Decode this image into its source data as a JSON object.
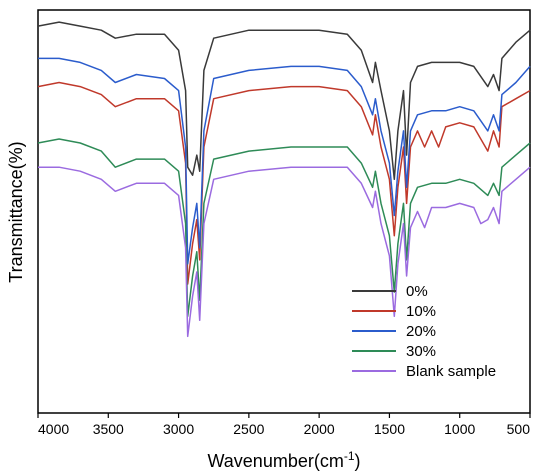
{
  "chart_data": {
    "type": "line",
    "title": "",
    "xlabel": "Wavenumber(cm",
    "xlabel_sup": "-1",
    "xlabel_end": ")",
    "ylabel": "Transmittance(%)",
    "xlim": [
      4000,
      500
    ],
    "x_reversed": true,
    "ylim": [
      0,
      100
    ],
    "y_ticks_shown": false,
    "x_ticks": [
      4000,
      3500,
      3000,
      2500,
      2000,
      1500,
      1000,
      500
    ],
    "x_tick_labels": [
      "4000",
      "3500",
      "3000",
      "2500",
      "2000",
      "1500",
      "1000",
      "500"
    ],
    "legend_position": "bottom-right",
    "grid": false,
    "series": [
      {
        "name": "0%",
        "color": "#3a3a3a",
        "points": [
          [
            4000,
            96
          ],
          [
            3850,
            97
          ],
          [
            3700,
            96
          ],
          [
            3550,
            95
          ],
          [
            3450,
            93
          ],
          [
            3300,
            94
          ],
          [
            3100,
            94
          ],
          [
            3000,
            90
          ],
          [
            2950,
            80
          ],
          [
            2935,
            61
          ],
          [
            2900,
            59
          ],
          [
            2870,
            64
          ],
          [
            2850,
            60
          ],
          [
            2820,
            85
          ],
          [
            2750,
            93
          ],
          [
            2500,
            95
          ],
          [
            2200,
            95
          ],
          [
            2000,
            95
          ],
          [
            1800,
            94
          ],
          [
            1700,
            90
          ],
          [
            1620,
            82
          ],
          [
            1600,
            87
          ],
          [
            1560,
            80
          ],
          [
            1500,
            70
          ],
          [
            1465,
            58
          ],
          [
            1440,
            70
          ],
          [
            1400,
            80
          ],
          [
            1378,
            64
          ],
          [
            1350,
            82
          ],
          [
            1300,
            86
          ],
          [
            1200,
            87
          ],
          [
            1100,
            87
          ],
          [
            1000,
            87
          ],
          [
            900,
            86
          ],
          [
            800,
            81
          ],
          [
            760,
            84
          ],
          [
            720,
            80
          ],
          [
            700,
            88
          ],
          [
            600,
            92
          ],
          [
            500,
            95
          ]
        ]
      },
      {
        "name": "10%",
        "color": "#c0392b",
        "points": [
          [
            4000,
            81
          ],
          [
            3850,
            82
          ],
          [
            3700,
            81
          ],
          [
            3550,
            79
          ],
          [
            3450,
            76
          ],
          [
            3300,
            78
          ],
          [
            3100,
            78
          ],
          [
            3000,
            75
          ],
          [
            2950,
            62
          ],
          [
            2935,
            32
          ],
          [
            2900,
            42
          ],
          [
            2870,
            48
          ],
          [
            2850,
            38
          ],
          [
            2820,
            66
          ],
          [
            2750,
            78
          ],
          [
            2500,
            80
          ],
          [
            2200,
            81
          ],
          [
            2000,
            81
          ],
          [
            1800,
            80
          ],
          [
            1700,
            76
          ],
          [
            1620,
            69
          ],
          [
            1600,
            74
          ],
          [
            1560,
            66
          ],
          [
            1500,
            58
          ],
          [
            1465,
            44
          ],
          [
            1440,
            56
          ],
          [
            1400,
            66
          ],
          [
            1378,
            52
          ],
          [
            1350,
            66
          ],
          [
            1300,
            70
          ],
          [
            1250,
            66
          ],
          [
            1200,
            70
          ],
          [
            1150,
            66
          ],
          [
            1100,
            71
          ],
          [
            1000,
            72
          ],
          [
            900,
            71
          ],
          [
            850,
            68
          ],
          [
            800,
            65
          ],
          [
            760,
            70
          ],
          [
            720,
            66
          ],
          [
            700,
            76
          ],
          [
            600,
            78
          ],
          [
            500,
            80
          ]
        ]
      },
      {
        "name": "20%",
        "color": "#2b5ccc",
        "points": [
          [
            4000,
            88
          ],
          [
            3850,
            88
          ],
          [
            3700,
            87
          ],
          [
            3550,
            85
          ],
          [
            3450,
            82
          ],
          [
            3300,
            84
          ],
          [
            3100,
            83
          ],
          [
            3000,
            80
          ],
          [
            2950,
            66
          ],
          [
            2935,
            37
          ],
          [
            2900,
            46
          ],
          [
            2870,
            52
          ],
          [
            2850,
            41
          ],
          [
            2820,
            70
          ],
          [
            2750,
            83
          ],
          [
            2500,
            85
          ],
          [
            2200,
            86
          ],
          [
            2000,
            86
          ],
          [
            1800,
            85
          ],
          [
            1700,
            81
          ],
          [
            1620,
            74
          ],
          [
            1600,
            78
          ],
          [
            1560,
            70
          ],
          [
            1500,
            62
          ],
          [
            1465,
            49
          ],
          [
            1440,
            60
          ],
          [
            1400,
            70
          ],
          [
            1378,
            56
          ],
          [
            1350,
            70
          ],
          [
            1300,
            74
          ],
          [
            1200,
            75
          ],
          [
            1100,
            75
          ],
          [
            1000,
            76
          ],
          [
            900,
            75
          ],
          [
            800,
            70
          ],
          [
            760,
            74
          ],
          [
            720,
            70
          ],
          [
            700,
            79
          ],
          [
            600,
            82
          ],
          [
            500,
            86
          ]
        ]
      },
      {
        "name": "30%",
        "color": "#2e8b57",
        "points": [
          [
            4000,
            67
          ],
          [
            3850,
            68
          ],
          [
            3700,
            67
          ],
          [
            3550,
            65
          ],
          [
            3450,
            61
          ],
          [
            3300,
            63
          ],
          [
            3100,
            63
          ],
          [
            3000,
            60
          ],
          [
            2950,
            47
          ],
          [
            2935,
            24
          ],
          [
            2900,
            34
          ],
          [
            2870,
            40
          ],
          [
            2850,
            28
          ],
          [
            2820,
            52
          ],
          [
            2750,
            63
          ],
          [
            2500,
            65
          ],
          [
            2200,
            66
          ],
          [
            2000,
            66
          ],
          [
            1800,
            66
          ],
          [
            1700,
            62
          ],
          [
            1620,
            56
          ],
          [
            1600,
            60
          ],
          [
            1560,
            52
          ],
          [
            1500,
            44
          ],
          [
            1465,
            30
          ],
          [
            1440,
            42
          ],
          [
            1400,
            52
          ],
          [
            1378,
            38
          ],
          [
            1350,
            52
          ],
          [
            1300,
            56
          ],
          [
            1200,
            57
          ],
          [
            1100,
            57
          ],
          [
            1000,
            58
          ],
          [
            900,
            57
          ],
          [
            800,
            54
          ],
          [
            760,
            57
          ],
          [
            720,
            54
          ],
          [
            700,
            61
          ],
          [
            600,
            64
          ],
          [
            500,
            67
          ]
        ]
      },
      {
        "name": "Blank sample",
        "color": "#9b6be0",
        "points": [
          [
            4000,
            61
          ],
          [
            3850,
            61
          ],
          [
            3700,
            60
          ],
          [
            3550,
            58
          ],
          [
            3450,
            55
          ],
          [
            3300,
            57
          ],
          [
            3100,
            57
          ],
          [
            3000,
            54
          ],
          [
            2950,
            41
          ],
          [
            2935,
            19
          ],
          [
            2900,
            29
          ],
          [
            2870,
            35
          ],
          [
            2850,
            23
          ],
          [
            2820,
            47
          ],
          [
            2750,
            58
          ],
          [
            2500,
            60
          ],
          [
            2200,
            61
          ],
          [
            2000,
            61
          ],
          [
            1800,
            61
          ],
          [
            1700,
            57
          ],
          [
            1620,
            51
          ],
          [
            1600,
            55
          ],
          [
            1560,
            47
          ],
          [
            1500,
            39
          ],
          [
            1465,
            24
          ],
          [
            1440,
            37
          ],
          [
            1400,
            47
          ],
          [
            1378,
            34
          ],
          [
            1350,
            46
          ],
          [
            1300,
            50
          ],
          [
            1250,
            46
          ],
          [
            1200,
            51
          ],
          [
            1100,
            51
          ],
          [
            1000,
            52
          ],
          [
            900,
            51
          ],
          [
            850,
            47
          ],
          [
            800,
            48
          ],
          [
            760,
            51
          ],
          [
            720,
            47
          ],
          [
            700,
            55
          ],
          [
            600,
            58
          ],
          [
            500,
            61
          ]
        ]
      }
    ]
  }
}
